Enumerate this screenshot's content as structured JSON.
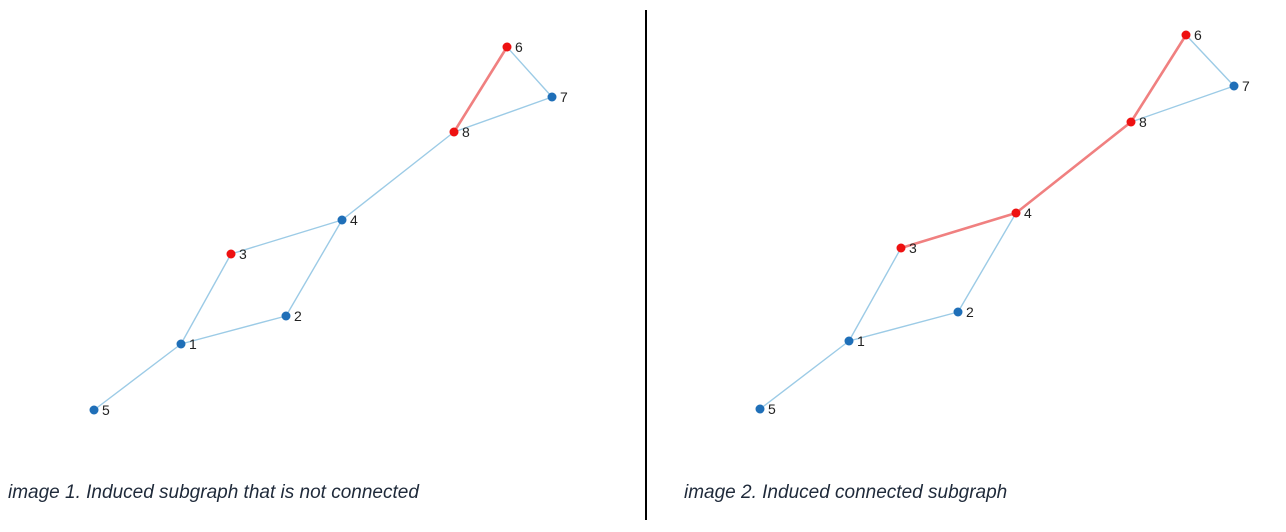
{
  "colors": {
    "default_node": "#1f6fb8",
    "highlight_node": "#ee1111",
    "default_edge": "#9ccbe6",
    "highlight_edge": "#f08080"
  },
  "graph": {
    "nodes": [
      "1",
      "2",
      "3",
      "4",
      "5",
      "6",
      "7",
      "8"
    ],
    "edges": [
      [
        "1",
        "5"
      ],
      [
        "1",
        "2"
      ],
      [
        "1",
        "3"
      ],
      [
        "2",
        "4"
      ],
      [
        "3",
        "4"
      ],
      [
        "4",
        "8"
      ],
      [
        "8",
        "7"
      ],
      [
        "8",
        "6"
      ],
      [
        "6",
        "7"
      ]
    ]
  },
  "panels": [
    {
      "caption": "image 1. Induced subgraph that is not connected",
      "highlighted_nodes": [
        "3",
        "6",
        "8"
      ],
      "highlighted_edges": [
        [
          "8",
          "6"
        ]
      ]
    },
    {
      "caption": "image 2. Induced connected subgraph",
      "highlighted_nodes": [
        "3",
        "4",
        "6",
        "8"
      ],
      "highlighted_edges": [
        [
          "3",
          "4"
        ],
        [
          "4",
          "8"
        ],
        [
          "8",
          "6"
        ]
      ]
    }
  ]
}
